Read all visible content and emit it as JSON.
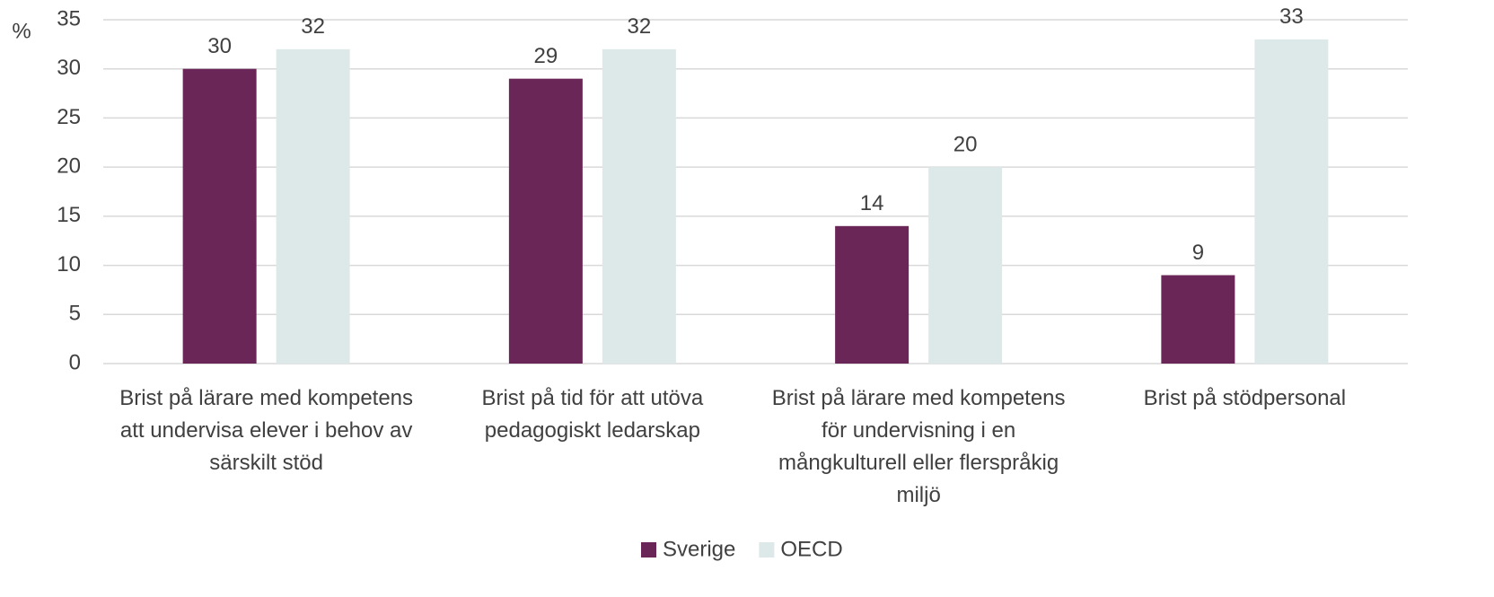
{
  "chart_data": {
    "type": "bar",
    "y_label": "%",
    "categories": [
      "Brist på lärare med kompetens att undervisa elever i behov av särskilt stöd",
      "Brist på tid för att utöva pedagogiskt ledarskap",
      "Brist på lärare med kompetens för undervisning i en mångkulturell eller flerspråkig miljö",
      "Brist på stödpersonal"
    ],
    "series": [
      {
        "name": "Sverige",
        "color": "#6a2657",
        "values": [
          30,
          29,
          14,
          9
        ]
      },
      {
        "name": "OECD",
        "color": "#dde9e8",
        "values": [
          32,
          32,
          20,
          33
        ]
      }
    ],
    "ylim": [
      0,
      35
    ],
    "yticks": [
      0,
      5,
      10,
      15,
      20,
      25,
      30,
      35
    ],
    "grid": true,
    "legend": "bottom"
  }
}
